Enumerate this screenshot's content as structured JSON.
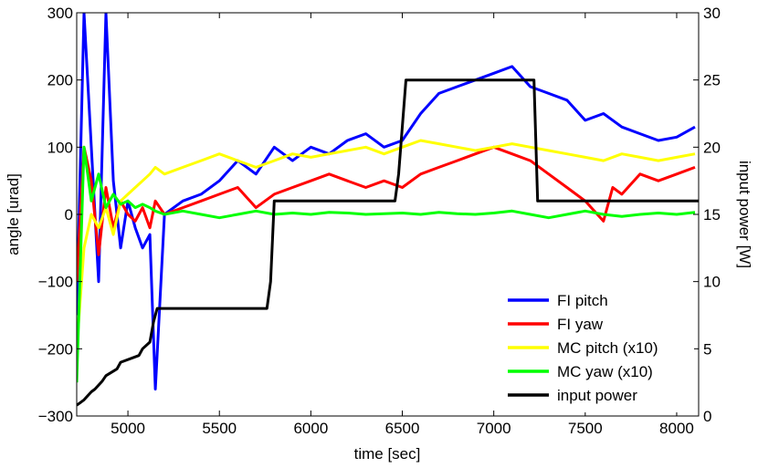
{
  "chart_data": {
    "type": "line",
    "xlabel": "time [sec]",
    "ylabel_left": "angle [urad]",
    "ylabel_right": "input power [W]",
    "xlim": [
      4720,
      8120
    ],
    "ylim_left": [
      -300,
      300
    ],
    "ylim_right": [
      0,
      30
    ],
    "xticks": [
      5000,
      5500,
      6000,
      6500,
      7000,
      7500,
      8000
    ],
    "yticks_left": [
      -300,
      -200,
      -100,
      0,
      100,
      200,
      300
    ],
    "yticks_right": [
      0,
      5,
      10,
      15,
      20,
      25,
      30
    ],
    "grid": false,
    "legend_position": "bottom-right",
    "series": [
      {
        "name": "FI pitch",
        "color": "#0000ff",
        "axis": "left",
        "x": [
          4720,
          4760,
          4800,
          4840,
          4880,
          4920,
          4960,
          5000,
          5040,
          5080,
          5120,
          5150,
          5200,
          5300,
          5400,
          5500,
          5600,
          5700,
          5800,
          5900,
          6000,
          6100,
          6200,
          6300,
          6400,
          6500,
          6600,
          6700,
          6800,
          6900,
          7000,
          7100,
          7200,
          7300,
          7400,
          7500,
          7600,
          7700,
          7800,
          7900,
          8000,
          8100
        ],
        "y": [
          -150,
          300,
          100,
          -100,
          300,
          50,
          -50,
          20,
          -20,
          -50,
          -30,
          -260,
          0,
          20,
          30,
          50,
          80,
          60,
          100,
          80,
          100,
          90,
          110,
          120,
          100,
          110,
          150,
          180,
          190,
          200,
          210,
          220,
          190,
          180,
          170,
          140,
          150,
          130,
          120,
          110,
          115,
          130
        ]
      },
      {
        "name": "FI yaw",
        "color": "#ff0000",
        "axis": "left",
        "x": [
          4720,
          4760,
          4800,
          4840,
          4880,
          4920,
          4960,
          5000,
          5040,
          5080,
          5120,
          5150,
          5200,
          5300,
          5400,
          5500,
          5600,
          5700,
          5800,
          5900,
          6000,
          6100,
          6200,
          6300,
          6400,
          6500,
          6600,
          6700,
          6800,
          6900,
          7000,
          7100,
          7200,
          7300,
          7400,
          7500,
          7600,
          7650,
          7700,
          7800,
          7900,
          8000,
          8100
        ],
        "y": [
          -100,
          100,
          50,
          -60,
          40,
          -20,
          20,
          0,
          -10,
          10,
          -20,
          20,
          0,
          10,
          20,
          30,
          40,
          10,
          30,
          40,
          50,
          60,
          50,
          40,
          50,
          40,
          60,
          70,
          80,
          90,
          100,
          90,
          80,
          60,
          40,
          20,
          -10,
          40,
          30,
          60,
          50,
          60,
          70
        ]
      },
      {
        "name": "MC pitch (x10)",
        "color": "#ffff00",
        "axis": "left",
        "x": [
          4720,
          4760,
          4800,
          4840,
          4880,
          4920,
          4960,
          5000,
          5040,
          5080,
          5120,
          5150,
          5200,
          5300,
          5400,
          5500,
          5600,
          5700,
          5800,
          5900,
          6000,
          6100,
          6200,
          6300,
          6400,
          6500,
          6600,
          6700,
          6800,
          6900,
          7000,
          7100,
          7200,
          7300,
          7400,
          7500,
          7600,
          7700,
          7800,
          7900,
          8000,
          8100
        ],
        "y": [
          -200,
          -50,
          0,
          -20,
          10,
          -30,
          20,
          30,
          40,
          50,
          60,
          70,
          60,
          70,
          80,
          90,
          80,
          70,
          80,
          90,
          85,
          90,
          95,
          100,
          90,
          100,
          110,
          105,
          100,
          95,
          100,
          105,
          100,
          95,
          90,
          85,
          80,
          90,
          85,
          80,
          85,
          90
        ]
      },
      {
        "name": "MC yaw (x10)",
        "color": "#00ff00",
        "axis": "left",
        "x": [
          4720,
          4760,
          4800,
          4840,
          4880,
          4920,
          4960,
          5000,
          5040,
          5080,
          5120,
          5150,
          5200,
          5300,
          5400,
          5500,
          5600,
          5700,
          5800,
          5900,
          6000,
          6100,
          6200,
          6300,
          6400,
          6500,
          6600,
          6700,
          6800,
          6900,
          7000,
          7100,
          7200,
          7300,
          7400,
          7500,
          7600,
          7700,
          7800,
          7900,
          8000,
          8100
        ],
        "y": [
          -250,
          100,
          20,
          60,
          10,
          30,
          15,
          20,
          10,
          15,
          10,
          5,
          0,
          5,
          0,
          -5,
          0,
          5,
          0,
          2,
          0,
          3,
          2,
          0,
          1,
          2,
          0,
          3,
          1,
          0,
          2,
          5,
          0,
          -5,
          0,
          5,
          0,
          -3,
          0,
          2,
          0,
          3
        ]
      },
      {
        "name": "input power",
        "color": "#000000",
        "axis": "right",
        "x": [
          4720,
          4740,
          4760,
          4780,
          4800,
          4820,
          4840,
          4860,
          4880,
          4940,
          4960,
          5060,
          5080,
          5120,
          5140,
          5160,
          5760,
          5780,
          5800,
          6460,
          6480,
          6520,
          7220,
          7240,
          8120
        ],
        "y": [
          0.8,
          1.0,
          1.2,
          1.5,
          1.8,
          2.0,
          2.3,
          2.6,
          3.0,
          3.5,
          4.0,
          4.5,
          5.0,
          5.5,
          7.0,
          8.0,
          8.0,
          10.0,
          16.0,
          16.0,
          18.0,
          25.0,
          25.0,
          16.0,
          16.0
        ]
      }
    ]
  }
}
